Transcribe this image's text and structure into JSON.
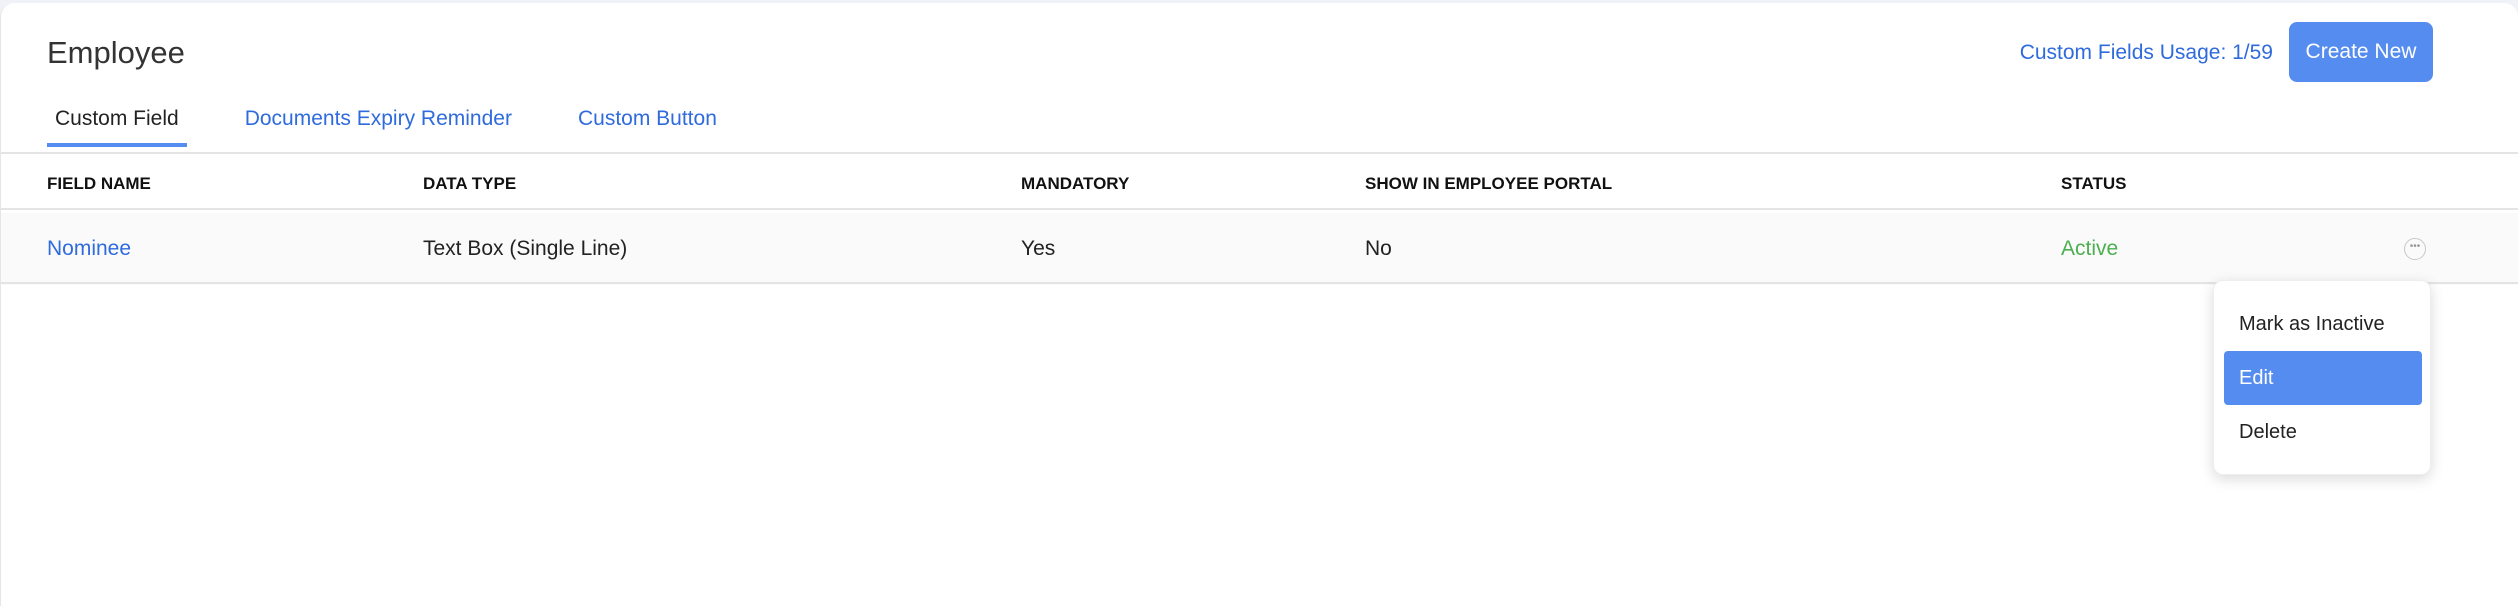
{
  "header": {
    "title": "Employee",
    "usage": "Custom Fields Usage: 1/59",
    "create_label": "Create New"
  },
  "tabs": [
    {
      "label": "Custom Field",
      "active": true
    },
    {
      "label": "Documents Expiry Reminder"
    },
    {
      "label": "Custom Button"
    }
  ],
  "table": {
    "columns": [
      "FIELD NAME",
      "DATA TYPE",
      "MANDATORY",
      "SHOW IN EMPLOYEE PORTAL",
      "STATUS"
    ],
    "rows": [
      {
        "field_name": "Nominee",
        "data_type": "Text Box (Single Line)",
        "mandatory": "Yes",
        "show_in_portal": "No",
        "status": "Active"
      }
    ]
  },
  "menu": {
    "items": [
      "Mark as Inactive",
      "Edit",
      "Delete"
    ],
    "highlighted": "Edit"
  },
  "colors": {
    "accent": "#558cf0",
    "link": "#2f6bdc",
    "active_status": "#4caf50"
  },
  "icons": {
    "row_actions": "ellipsis-circle-icon"
  }
}
